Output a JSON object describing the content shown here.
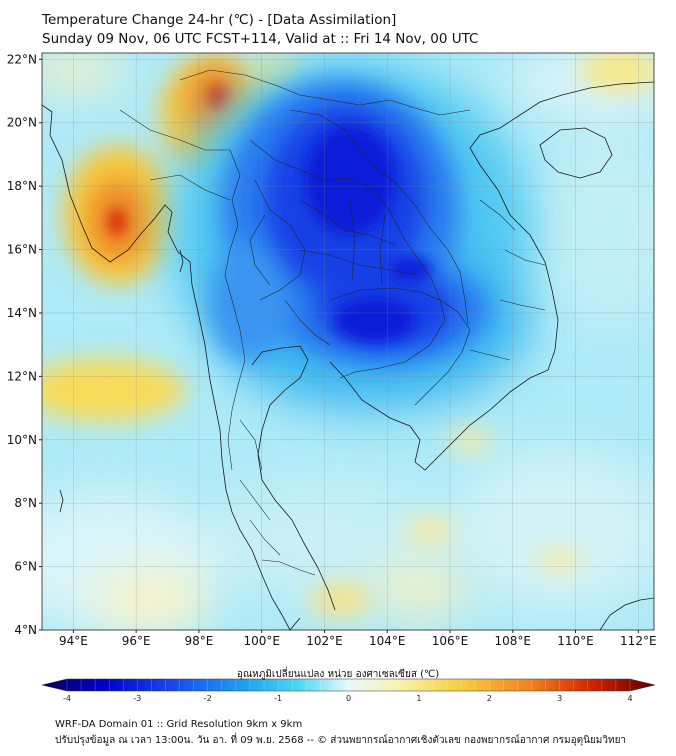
{
  "title": {
    "line1": "Temperature Change 24-hr (℃) - [Data Assimilation]",
    "line2": "Sunday 09 Nov, 06 UTC FCST+114, Valid at :: Fri 14 Nov, 00 UTC"
  },
  "map": {
    "lat_labels": [
      "22°N",
      "20°N",
      "18°N",
      "16°N",
      "14°N",
      "12°N",
      "10°N",
      "8°N",
      "6°N",
      "4°N"
    ],
    "lon_labels": [
      "94°E",
      "96°E",
      "98°E",
      "100°E",
      "102°E",
      "104°E",
      "106°E",
      "108°E",
      "110°E",
      "112°E"
    ],
    "lat_values": [
      22,
      20,
      18,
      16,
      14,
      12,
      10,
      8,
      6,
      4
    ],
    "lon_values": [
      94,
      96,
      98,
      100,
      102,
      104,
      106,
      108,
      110,
      112
    ],
    "lat_range": [
      4,
      22.2
    ],
    "lon_range": [
      93,
      112.5
    ]
  },
  "field": {
    "variable": "24-hr temperature change",
    "unit": "℃",
    "features": [
      {
        "name": "cold core central Thailand / Laos",
        "lat": 17.0,
        "lon": 102.5,
        "value": -3.2
      },
      {
        "name": "cold core Cambodia",
        "lat": 13.5,
        "lon": 103.5,
        "value": -3.0
      },
      {
        "name": "warm patch NW Myanmar / Yunnan",
        "lat": 20.6,
        "lon": 98.4,
        "value": 2.6
      },
      {
        "name": "warm patch Bay of Bengal coast",
        "lat": 16.8,
        "lon": 95.3,
        "value": 2.8
      },
      {
        "name": "warm patch Andaman Sea",
        "lat": 11.7,
        "lon": 95.8,
        "value": 1.3
      }
    ]
  },
  "colorbar": {
    "title": "อุณหภูมิเปลี่ยนแปลง หน่วย องศาเซลเซียส (℃)",
    "min": -4,
    "max": 4,
    "ticks": [
      "-4",
      "-3",
      "-2",
      "-1",
      "0",
      "1",
      "2",
      "3",
      "4"
    ],
    "colors": [
      "#00005a",
      "#0000c8",
      "#1a4cf0",
      "#1fa0f0",
      "#4fd8f4",
      "#e8f8fb",
      "#f8f3b0",
      "#f8d040",
      "#f08020",
      "#d02000",
      "#5a0000"
    ]
  },
  "footer": {
    "line1": "WRF-DA Domain 01 :: Grid Resolution 9km x 9km",
    "line2": "ปรับปรุงข้อมูล ณ เวลา 13:00น. วัน อา. ที่ 09 พ.ย. 2568 -- © ส่วนพยากรณ์อากาศเชิงตัวเลข กองพยากรณ์อากาศ กรมอุตุนิยมวิทยา"
  }
}
